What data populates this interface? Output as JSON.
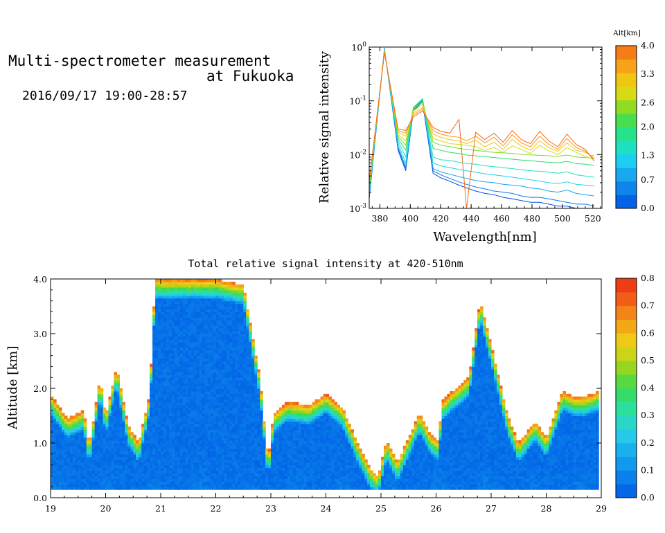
{
  "header": {
    "title_line1": "Multi-spectrometer measurement",
    "title_line2": "at Fukuoka",
    "date_range": "2016/09/17 19:00-28:57"
  },
  "colors": {
    "altitude_scale": [
      "#0050e6",
      "#0a7ae8",
      "#16a4ee",
      "#1fd2f2",
      "#1ee6b4",
      "#28e06a",
      "#78dc28",
      "#d6dc14",
      "#f2c412",
      "#f89618",
      "#f46a18"
    ],
    "intensity_scale": [
      "#005ae6",
      "#0a82ea",
      "#14aaf0",
      "#2ad0e6",
      "#2ae0a0",
      "#3ada50",
      "#9cd61e",
      "#eed214",
      "#f4a018",
      "#f26018",
      "#ec2c14"
    ]
  },
  "chart_data": [
    {
      "type": "line",
      "title": "",
      "xlabel": "Wavelength[nm]",
      "ylabel": "Relative signal intensity",
      "xlim": [
        373,
        526
      ],
      "ylim": [
        0.001,
        1
      ],
      "yscale": "log",
      "x_ticks": [
        "380",
        "400",
        "420",
        "440",
        "460",
        "480",
        "500",
        "520"
      ],
      "y_ticks": [
        "10^0",
        "10^-1",
        "10^-2",
        "10^-3"
      ],
      "legend": "colorbar-right",
      "colorbar": {
        "label": "Alt[km]",
        "ticks": [
          "4.0",
          "3.3",
          "2.6",
          "2.0",
          "1.3",
          "0.7",
          "0.0"
        ],
        "range": [
          0,
          4
        ]
      },
      "x": [
        373,
        383,
        392,
        397,
        402,
        408,
        415,
        420,
        426,
        432,
        437,
        443,
        449,
        455,
        461,
        467,
        473,
        479,
        485,
        491,
        497,
        503,
        509,
        515,
        521
      ],
      "series": [
        {
          "alt": 0.0,
          "values": [
            0.0015,
            0.95,
            0.012,
            0.005,
            0.065,
            0.095,
            0.0045,
            0.0037,
            0.0032,
            0.0027,
            0.0024,
            0.0021,
            0.0019,
            0.0018,
            0.0016,
            0.0015,
            0.0014,
            0.0013,
            0.0013,
            0.0012,
            0.0011,
            0.0011,
            0.001,
            0.001,
            0.0009
          ]
        },
        {
          "alt": 0.4,
          "values": [
            0.0016,
            0.93,
            0.013,
            0.0055,
            0.068,
            0.1,
            0.005,
            0.0042,
            0.0036,
            0.0031,
            0.0028,
            0.0025,
            0.0023,
            0.0021,
            0.002,
            0.0019,
            0.0017,
            0.0016,
            0.0016,
            0.0015,
            0.0014,
            0.0013,
            0.0012,
            0.0012,
            0.0011
          ]
        },
        {
          "alt": 0.8,
          "values": [
            0.0017,
            0.92,
            0.014,
            0.006,
            0.07,
            0.105,
            0.0055,
            0.0048,
            0.0043,
            0.0039,
            0.0036,
            0.0033,
            0.0031,
            0.003,
            0.0028,
            0.0027,
            0.0026,
            0.0024,
            0.0023,
            0.0021,
            0.002,
            0.0022,
            0.0019,
            0.0018,
            0.0017
          ]
        },
        {
          "alt": 1.2,
          "values": [
            0.0018,
            0.91,
            0.016,
            0.007,
            0.072,
            0.11,
            0.007,
            0.0062,
            0.0057,
            0.0053,
            0.005,
            0.0047,
            0.0044,
            0.0042,
            0.004,
            0.0038,
            0.0036,
            0.0034,
            0.0032,
            0.003,
            0.0029,
            0.0031,
            0.0028,
            0.0027,
            0.0026
          ]
        },
        {
          "alt": 1.6,
          "values": [
            0.002,
            0.9,
            0.018,
            0.009,
            0.075,
            0.11,
            0.009,
            0.008,
            0.0078,
            0.0072,
            0.0068,
            0.0066,
            0.0062,
            0.006,
            0.0057,
            0.0055,
            0.0052,
            0.005,
            0.0049,
            0.0047,
            0.0045,
            0.0048,
            0.0042,
            0.004,
            0.0038
          ]
        },
        {
          "alt": 2.0,
          "values": [
            0.0022,
            0.88,
            0.02,
            0.012,
            0.075,
            0.105,
            0.013,
            0.012,
            0.011,
            0.0105,
            0.0098,
            0.0095,
            0.0092,
            0.0088,
            0.0085,
            0.0082,
            0.0079,
            0.0077,
            0.0074,
            0.0072,
            0.007,
            0.0075,
            0.0068,
            0.0066,
            0.0063
          ]
        },
        {
          "alt": 2.4,
          "values": [
            0.0024,
            0.86,
            0.022,
            0.015,
            0.07,
            0.095,
            0.017,
            0.015,
            0.014,
            0.013,
            0.0125,
            0.012,
            0.0115,
            0.011,
            0.0108,
            0.0105,
            0.0102,
            0.0099,
            0.0097,
            0.0095,
            0.0093,
            0.0098,
            0.009,
            0.0088,
            0.0085
          ]
        },
        {
          "alt": 2.8,
          "values": [
            0.0026,
            0.84,
            0.024,
            0.018,
            0.065,
            0.085,
            0.02,
            0.018,
            0.016,
            0.0155,
            0.015,
            0.014,
            0.012,
            0.0135,
            0.011,
            0.0145,
            0.0125,
            0.0105,
            0.015,
            0.0118,
            0.01,
            0.0135,
            0.011,
            0.0092,
            0.0098
          ]
        },
        {
          "alt": 3.2,
          "values": [
            0.0028,
            0.82,
            0.026,
            0.022,
            0.06,
            0.075,
            0.024,
            0.021,
            0.019,
            0.018,
            0.016,
            0.0185,
            0.014,
            0.017,
            0.0125,
            0.019,
            0.0145,
            0.012,
            0.018,
            0.0135,
            0.0115,
            0.0165,
            0.012,
            0.011,
            0.0088
          ]
        },
        {
          "alt": 3.6,
          "values": [
            0.003,
            0.8,
            0.028,
            0.025,
            0.055,
            0.07,
            0.028,
            0.024,
            0.022,
            0.021,
            0.018,
            0.022,
            0.0165,
            0.021,
            0.0145,
            0.0235,
            0.0165,
            0.014,
            0.022,
            0.0155,
            0.0125,
            0.02,
            0.0135,
            0.0115,
            0.0082
          ]
        },
        {
          "alt": 4.0,
          "values": [
            0.0032,
            0.78,
            0.03,
            0.028,
            0.05,
            0.065,
            0.032,
            0.027,
            0.025,
            0.045,
            0.001,
            0.026,
            0.019,
            0.025,
            0.017,
            0.028,
            0.019,
            0.016,
            0.027,
            0.018,
            0.014,
            0.024,
            0.0155,
            0.0125,
            0.0075
          ]
        }
      ]
    },
    {
      "type": "heatmap",
      "title": "Total relative signal intensity at 420-510nm",
      "xlabel": "",
      "ylabel": "Altitude [km]",
      "xlim": [
        19,
        29
      ],
      "ylim": [
        0,
        4
      ],
      "x_ticks": [
        "19",
        "20",
        "21",
        "22",
        "23",
        "24",
        "25",
        "26",
        "27",
        "28",
        "29"
      ],
      "y_ticks": [
        "0.0",
        "1.0",
        "2.0",
        "3.0",
        "4.0"
      ],
      "colorbar": {
        "ticks": [
          "0.8",
          "0.7",
          "0.6",
          "0.5",
          "0.4",
          "0.3",
          "0.2",
          "0.1",
          "0.0"
        ],
        "range": [
          0,
          0.8
        ]
      },
      "data_time_range": [
        19.0,
        28.95
      ],
      "data_alt_range": [
        0.15,
        4.0
      ],
      "cloud_base_profile": {
        "hours": [
          19.0,
          19.3,
          19.6,
          19.7,
          19.9,
          20.0,
          20.2,
          20.4,
          20.6,
          20.8,
          20.9,
          21.0,
          21.5,
          22.0,
          22.5,
          22.8,
          22.95,
          23.05,
          23.3,
          23.7,
          24.0,
          24.3,
          24.6,
          24.8,
          24.95,
          25.1,
          25.3,
          25.5,
          25.7,
          25.9,
          26.05,
          26.1,
          26.3,
          26.6,
          26.8,
          27.0,
          27.3,
          27.5,
          27.8,
          28.0,
          28.3,
          28.5,
          28.7,
          28.95
        ],
        "km": [
          1.9,
          1.45,
          1.6,
          0.95,
          2.2,
          1.5,
          2.4,
          1.35,
          1.0,
          1.9,
          4.0,
          4.0,
          4.0,
          4.0,
          3.9,
          2.2,
          0.65,
          1.55,
          1.75,
          1.7,
          1.9,
          1.65,
          0.95,
          0.55,
          0.4,
          1.05,
          0.65,
          1.1,
          1.55,
          1.15,
          1.05,
          1.75,
          1.95,
          2.2,
          3.6,
          2.8,
          1.5,
          1.0,
          1.4,
          1.1,
          1.95,
          1.85,
          1.85,
          1.95
        ]
      }
    }
  ]
}
